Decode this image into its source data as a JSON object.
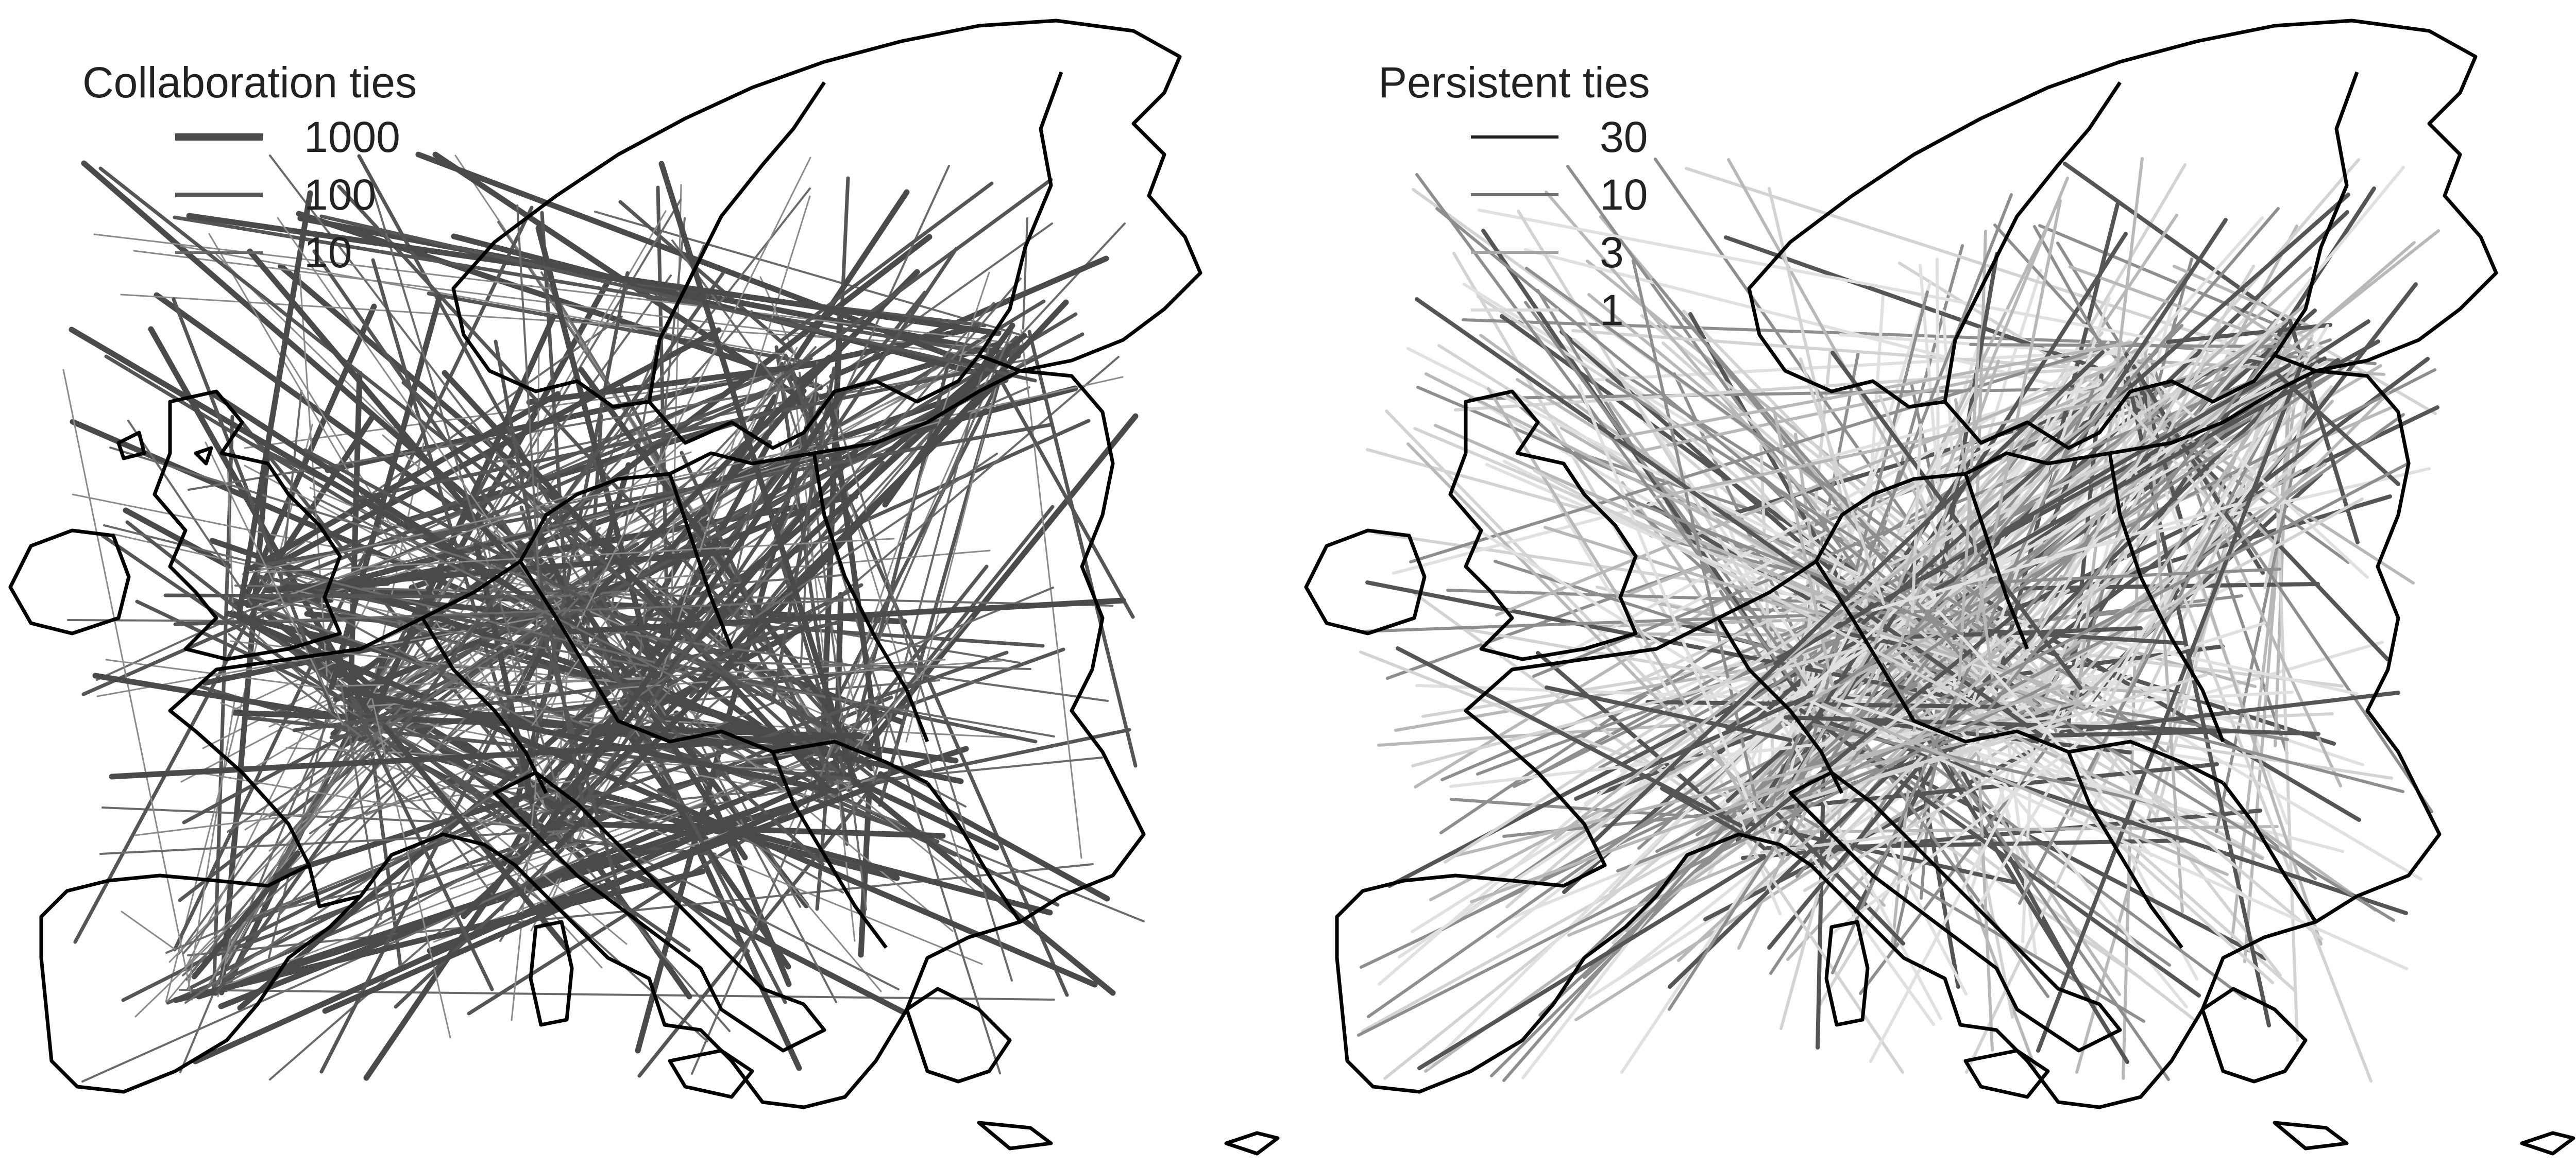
{
  "panels": [
    {
      "legend": {
        "title": "Collaboration ties",
        "entries": [
          {
            "label": "1000",
            "color": "#4a4a4a",
            "weight": 1000
          },
          {
            "label": "100",
            "color": "#555555",
            "weight": 100
          },
          {
            "label": "10",
            "color": "#666666",
            "weight": 10
          }
        ]
      },
      "edge_color": "#5a5a5a"
    },
    {
      "legend": {
        "title": "Persistent ties",
        "entries": [
          {
            "label": "30",
            "color": "#1e1e1e",
            "weight": 30
          },
          {
            "label": "10",
            "color": "#6e6e6e",
            "weight": 10
          },
          {
            "label": "3",
            "color": "#a6a6a6",
            "weight": 3
          },
          {
            "label": "1",
            "color": "#d9d9d9",
            "weight": 1
          }
        ]
      },
      "edge_color": "#cfcfcf"
    }
  ],
  "map": {
    "region": "Europe",
    "outline_color": "#000000",
    "background": "#ffffff"
  }
}
